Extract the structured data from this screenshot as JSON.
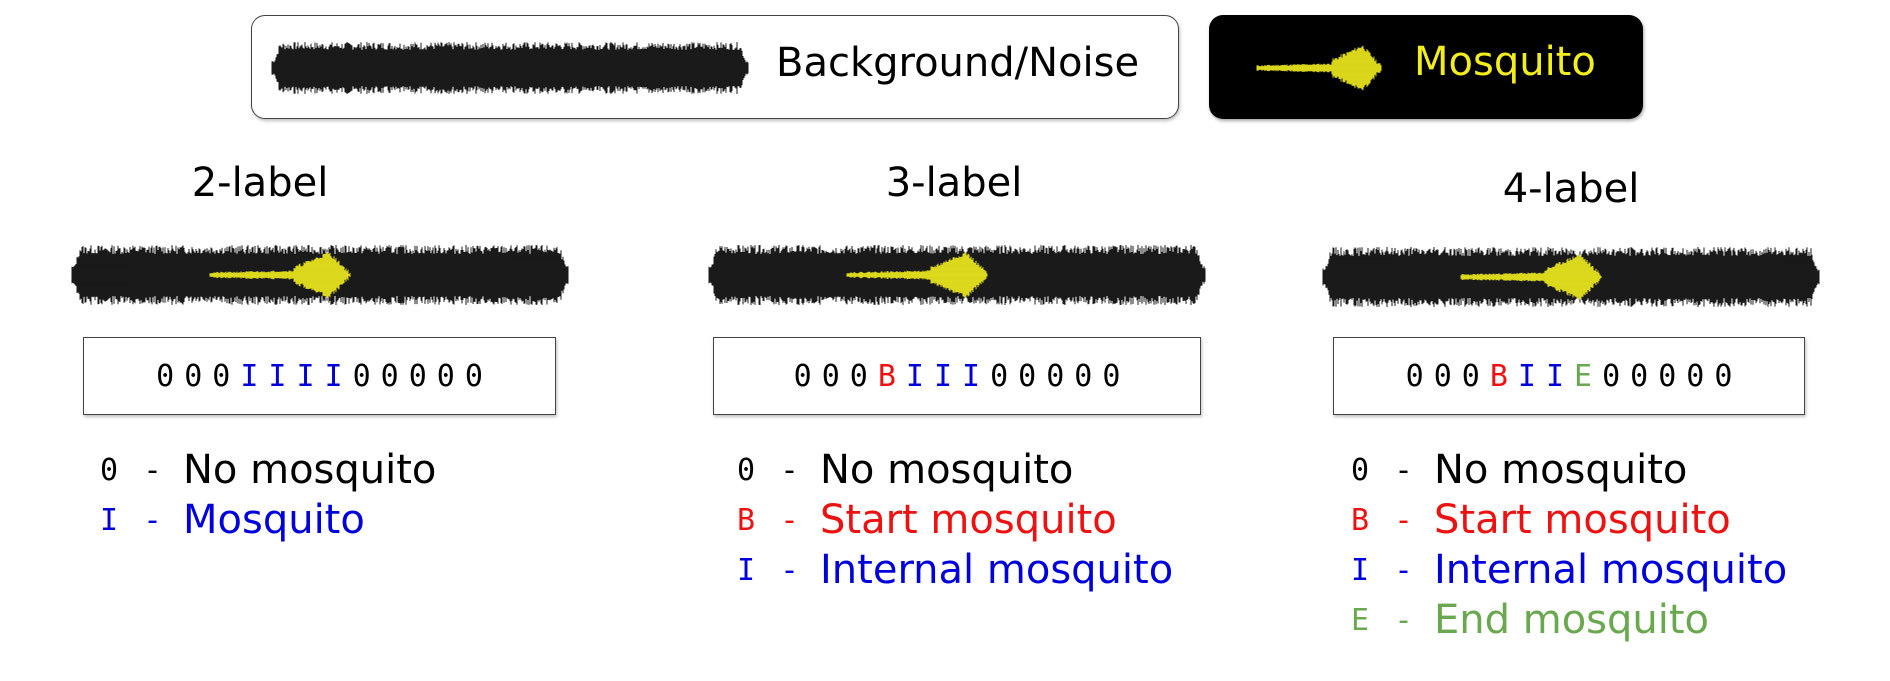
{
  "legend": {
    "noise_label": "Background/Noise",
    "mosquito_label": "Mosquito"
  },
  "colors": {
    "O": "#000000",
    "I": "#0000dd",
    "B": "#ee1111",
    "E": "#6aa84f",
    "mosquito_wave": "#f2ee1d"
  },
  "panels": [
    {
      "title": "2-label",
      "sequence": [
        "0",
        "0",
        "0",
        "I",
        "I",
        "I",
        "I",
        "0",
        "0",
        "0",
        "0",
        "0"
      ],
      "key": [
        {
          "code": "0",
          "text": "No mosquito",
          "cls": "O"
        },
        {
          "code": "I",
          "text": "Mosquito",
          "cls": "I"
        }
      ]
    },
    {
      "title": "3-label",
      "sequence": [
        "0",
        "0",
        "0",
        "B",
        "I",
        "I",
        "I",
        "0",
        "0",
        "0",
        "0",
        "0"
      ],
      "key": [
        {
          "code": "0",
          "text": "No mosquito",
          "cls": "O"
        },
        {
          "code": "B",
          "text": "Start mosquito",
          "cls": "B"
        },
        {
          "code": "I",
          "text": "Internal mosquito",
          "cls": "I"
        }
      ]
    },
    {
      "title": "4-label",
      "sequence": [
        "0",
        "0",
        "0",
        "B",
        "I",
        "I",
        "E",
        "0",
        "0",
        "0",
        "0",
        "0"
      ],
      "key": [
        {
          "code": "0",
          "text": "No mosquito",
          "cls": "O"
        },
        {
          "code": "B",
          "text": "Start mosquito",
          "cls": "B"
        },
        {
          "code": "I",
          "text": "Internal mosquito",
          "cls": "I"
        },
        {
          "code": "E",
          "text": "End mosquito",
          "cls": "E"
        }
      ]
    }
  ]
}
